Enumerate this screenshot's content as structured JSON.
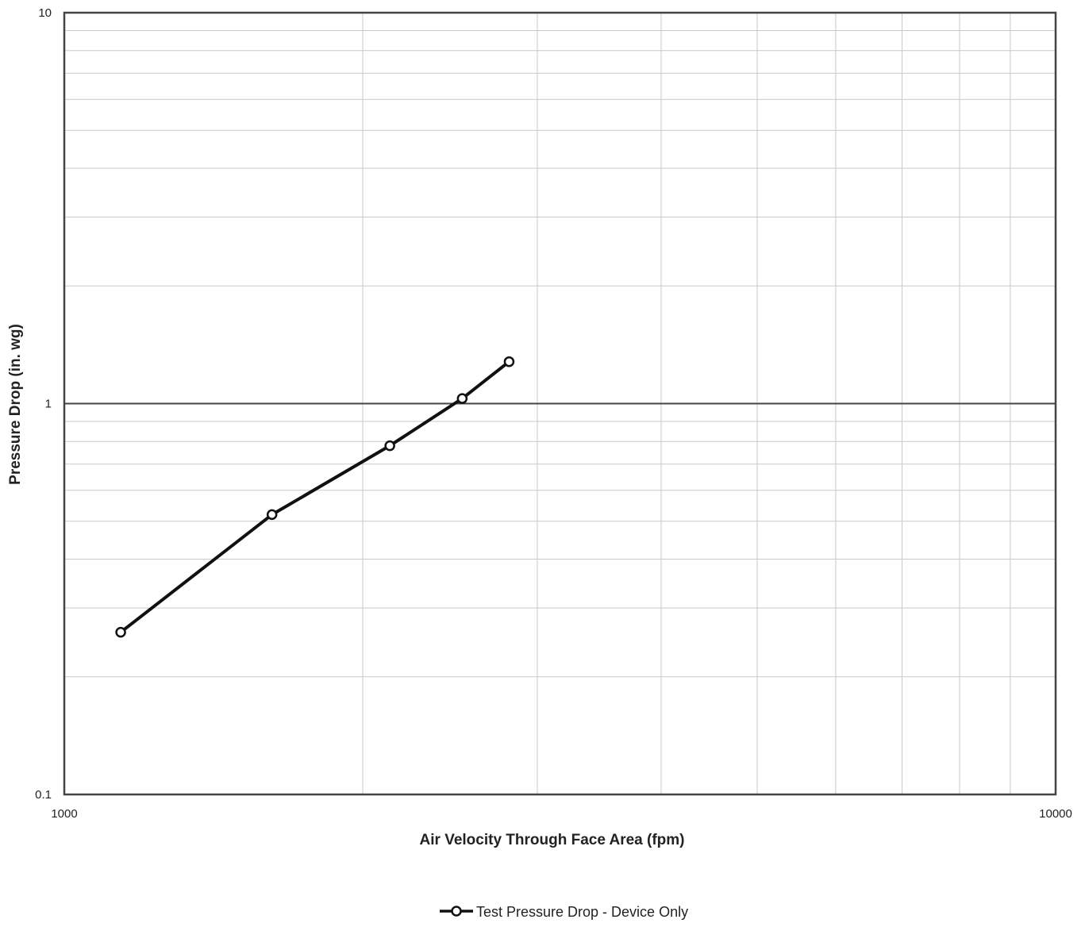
{
  "chart_data": {
    "type": "line",
    "title": "",
    "xlabel": "Air Velocity  Through Face Area (fpm)",
    "ylabel": "Pressure Drop  (in. wg)",
    "xscale": "log",
    "yscale": "log",
    "xlim": [
      1000,
      10000
    ],
    "ylim": [
      0.1,
      10
    ],
    "x_tick_labels": [
      "1000",
      "10000"
    ],
    "y_tick_labels": [
      "0.1",
      "1",
      "10"
    ],
    "grid": true,
    "legend_position": "bottom-center",
    "series": [
      {
        "name": "Test Pressure Drop - Device Only",
        "color": "#111111",
        "marker": "open-circle",
        "x": [
          1140,
          1620,
          2130,
          2520,
          2810
        ],
        "y": [
          0.26,
          0.52,
          0.78,
          1.03,
          1.28
        ]
      }
    ]
  }
}
